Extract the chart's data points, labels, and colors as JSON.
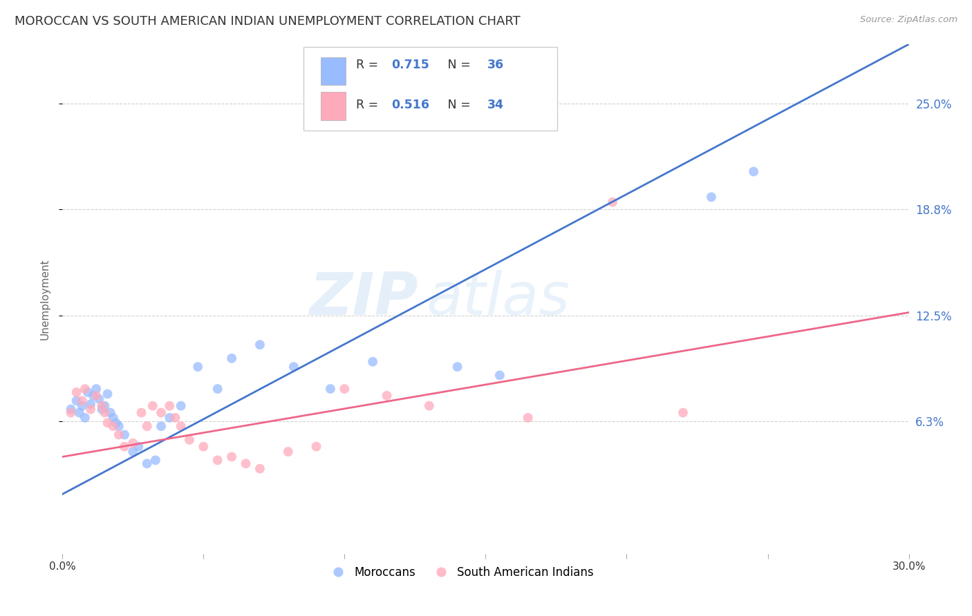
{
  "title": "MOROCCAN VS SOUTH AMERICAN INDIAN UNEMPLOYMENT CORRELATION CHART",
  "source": "Source: ZipAtlas.com",
  "ylabel": "Unemployment",
  "xlim": [
    0.0,
    0.3
  ],
  "ylim": [
    -0.015,
    0.285
  ],
  "yticks": [
    0.063,
    0.125,
    0.188,
    0.25
  ],
  "ytick_labels": [
    "6.3%",
    "12.5%",
    "18.8%",
    "25.0%"
  ],
  "xticks": [
    0.0,
    0.05,
    0.1,
    0.15,
    0.2,
    0.25,
    0.3
  ],
  "xtick_labels": [
    "0.0%",
    "",
    "",
    "",
    "",
    "",
    "30.0%"
  ],
  "blue_color": "#99bbff",
  "pink_color": "#ffaabb",
  "blue_line_color": "#4477cc",
  "pink_line_color": "#ee6688",
  "legend_R1": "0.715",
  "legend_N1": "36",
  "legend_R2": "0.516",
  "legend_N2": "34",
  "watermark_zip": "ZIP",
  "watermark_atlas": "atlas",
  "blue_scatter_x": [
    0.003,
    0.005,
    0.006,
    0.007,
    0.008,
    0.009,
    0.01,
    0.011,
    0.012,
    0.013,
    0.014,
    0.015,
    0.016,
    0.017,
    0.018,
    0.019,
    0.02,
    0.022,
    0.025,
    0.027,
    0.03,
    0.033,
    0.035,
    0.038,
    0.042,
    0.048,
    0.055,
    0.06,
    0.07,
    0.082,
    0.095,
    0.11,
    0.14,
    0.155,
    0.23,
    0.245
  ],
  "blue_scatter_y": [
    0.07,
    0.075,
    0.068,
    0.072,
    0.065,
    0.08,
    0.073,
    0.078,
    0.082,
    0.076,
    0.07,
    0.072,
    0.079,
    0.068,
    0.065,
    0.062,
    0.06,
    0.055,
    0.045,
    0.048,
    0.038,
    0.04,
    0.06,
    0.065,
    0.072,
    0.095,
    0.082,
    0.1,
    0.108,
    0.095,
    0.082,
    0.098,
    0.095,
    0.09,
    0.195,
    0.21
  ],
  "pink_scatter_x": [
    0.003,
    0.005,
    0.007,
    0.008,
    0.01,
    0.012,
    0.014,
    0.015,
    0.016,
    0.018,
    0.02,
    0.022,
    0.025,
    0.028,
    0.03,
    0.032,
    0.035,
    0.038,
    0.04,
    0.042,
    0.045,
    0.05,
    0.055,
    0.06,
    0.065,
    0.07,
    0.08,
    0.09,
    0.1,
    0.115,
    0.13,
    0.165,
    0.195,
    0.22
  ],
  "pink_scatter_y": [
    0.068,
    0.08,
    0.075,
    0.082,
    0.07,
    0.078,
    0.072,
    0.068,
    0.062,
    0.06,
    0.055,
    0.048,
    0.05,
    0.068,
    0.06,
    0.072,
    0.068,
    0.072,
    0.065,
    0.06,
    0.052,
    0.048,
    0.04,
    0.042,
    0.038,
    0.035,
    0.045,
    0.048,
    0.082,
    0.078,
    0.072,
    0.065,
    0.192,
    0.068
  ],
  "blue_line_x0": 0.0,
  "blue_line_x1": 0.3,
  "blue_line_y0": 0.02,
  "blue_line_y1": 0.285,
  "pink_line_x0": 0.0,
  "pink_line_x1": 0.3,
  "pink_line_y0": 0.042,
  "pink_line_y1": 0.127,
  "marker_size": 100,
  "background_color": "#ffffff",
  "grid_color": "#cccccc",
  "title_color": "#333333",
  "right_tick_color": "#4477cc",
  "legend_text_color": "#333333",
  "legend_num_color": "#4477cc"
}
